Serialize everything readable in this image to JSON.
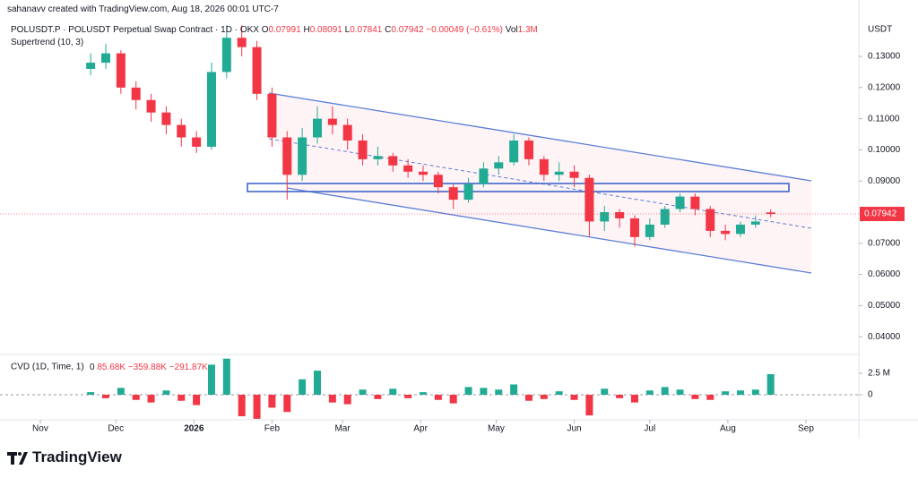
{
  "header": {
    "credit": "sahanavv created with TradingView.com, Aug 18, 2026 00:01 UTC-7",
    "symbol": "POLUSDT.P · POLUSDT Perpetual Swap Contract · 1D · OKX",
    "o": "O",
    "h": "H",
    "l": "L",
    "c": "C",
    "change": "−0.00049 (−0.61%)",
    "vol_label": "Vol",
    "vol": "1.3M",
    "indicator": "Supertrend (10, 3)"
  },
  "chart_data": {
    "type": "candlestick",
    "currency": "USDT",
    "x": [
      20,
      26,
      32,
      38,
      44,
      50,
      56,
      62,
      68,
      74,
      80,
      86,
      92,
      98,
      104,
      110,
      116,
      122,
      128,
      134,
      140,
      146,
      152,
      158,
      164,
      170,
      176,
      182,
      188,
      194,
      200,
      206,
      212,
      218,
      224,
      230,
      236,
      242,
      248,
      254,
      260,
      266,
      272,
      278,
      284,
      290
    ],
    "open": [
      0.126,
      0.128,
      0.131,
      0.12,
      0.116,
      0.112,
      0.108,
      0.104,
      0.101,
      0.125,
      0.136,
      0.133,
      0.118,
      0.104,
      0.092,
      0.104,
      0.11,
      0.108,
      0.103,
      0.097,
      0.098,
      0.095,
      0.093,
      0.092,
      0.088,
      0.084,
      0.089,
      0.094,
      0.096,
      0.103,
      0.097,
      0.092,
      0.093,
      0.091,
      0.077,
      0.08,
      0.078,
      0.072,
      0.076,
      0.081,
      0.085,
      0.081,
      0.074,
      0.073,
      0.076,
      0.07991
    ],
    "high": [
      0.131,
      0.134,
      0.132,
      0.122,
      0.118,
      0.114,
      0.11,
      0.106,
      0.128,
      0.14,
      0.14,
      0.135,
      0.12,
      0.106,
      0.107,
      0.114,
      0.114,
      0.11,
      0.105,
      0.101,
      0.099,
      0.097,
      0.095,
      0.093,
      0.089,
      0.091,
      0.096,
      0.098,
      0.105,
      0.104,
      0.098,
      0.096,
      0.095,
      0.092,
      0.082,
      0.081,
      0.079,
      0.078,
      0.082,
      0.086,
      0.086,
      0.082,
      0.076,
      0.077,
      0.079,
      0.08091
    ],
    "low": [
      0.124,
      0.126,
      0.118,
      0.113,
      0.109,
      0.105,
      0.101,
      0.099,
      0.1,
      0.123,
      0.13,
      0.116,
      0.101,
      0.084,
      0.09,
      0.102,
      0.105,
      0.1,
      0.095,
      0.095,
      0.093,
      0.091,
      0.09,
      0.086,
      0.081,
      0.083,
      0.088,
      0.092,
      0.095,
      0.095,
      0.09,
      0.09,
      0.088,
      0.072,
      0.074,
      0.075,
      0.069,
      0.071,
      0.075,
      0.08,
      0.079,
      0.072,
      0.071,
      0.072,
      0.075,
      0.07841
    ],
    "close": [
      0.128,
      0.131,
      0.12,
      0.116,
      0.112,
      0.108,
      0.104,
      0.101,
      0.125,
      0.136,
      0.133,
      0.118,
      0.104,
      0.092,
      0.104,
      0.11,
      0.108,
      0.103,
      0.097,
      0.098,
      0.095,
      0.093,
      0.092,
      0.088,
      0.084,
      0.089,
      0.094,
      0.096,
      0.103,
      0.097,
      0.092,
      0.093,
      0.091,
      0.077,
      0.08,
      0.078,
      0.072,
      0.076,
      0.081,
      0.085,
      0.081,
      0.074,
      0.073,
      0.076,
      0.077,
      0.07942
    ],
    "xlim": [
      -16,
      325
    ],
    "xticks": [
      {
        "value": 0,
        "label": "Nov"
      },
      {
        "value": 30,
        "label": "Dec"
      },
      {
        "value": 61,
        "label": "2026"
      },
      {
        "value": 92,
        "label": "Feb"
      },
      {
        "value": 120,
        "label": "Mar"
      },
      {
        "value": 151,
        "label": "Apr"
      },
      {
        "value": 181,
        "label": "May"
      },
      {
        "value": 212,
        "label": "Jun"
      },
      {
        "value": 242,
        "label": "Jul"
      },
      {
        "value": 273,
        "label": "Aug"
      },
      {
        "value": 304,
        "label": "Sep"
      }
    ],
    "ylim": [
      0.0343,
      0.1418
    ],
    "yticks": [
      {
        "value": 0.13,
        "label": "0.13000"
      },
      {
        "value": 0.12,
        "label": "0.12000"
      },
      {
        "value": 0.11,
        "label": "0.11000"
      },
      {
        "value": 0.1,
        "label": "0.10000"
      },
      {
        "value": 0.09,
        "label": "0.09000"
      },
      {
        "value": 0.07,
        "label": "0.07000"
      },
      {
        "value": 0.06,
        "label": "0.06000"
      },
      {
        "value": 0.05,
        "label": "0.05000"
      },
      {
        "value": 0.04,
        "label": "0.04000"
      }
    ],
    "up_color": "#22ab94",
    "down_color": "#f23645"
  },
  "cvd": {
    "type": "bar",
    "title": "CVD (1D, Time, 1)",
    "legend_values": [
      "0",
      "85.68K",
      "−359.88K",
      "−291.87K"
    ],
    "values": [
      300000,
      -400000,
      800000,
      -600000,
      -900000,
      500000,
      -700000,
      -1200000,
      3500000,
      4200000,
      -2500000,
      -2800000,
      -1500000,
      -2000000,
      1800000,
      2800000,
      -900000,
      -1100000,
      600000,
      -500000,
      700000,
      -400000,
      300000,
      -600000,
      -1000000,
      900000,
      800000,
      600000,
      1200000,
      -700000,
      -500000,
      400000,
      -600000,
      -2400000,
      700000,
      -400000,
      -900000,
      500000,
      900000,
      600000,
      -500000,
      -600000,
      400000,
      500000,
      600000,
      2400000
    ],
    "ylim": [
      -2810000,
      4580000
    ],
    "yticks": [
      0,
      {
        "value": 2500000,
        "label": "2.5 M"
      }
    ]
  },
  "brand": "TradingView"
}
